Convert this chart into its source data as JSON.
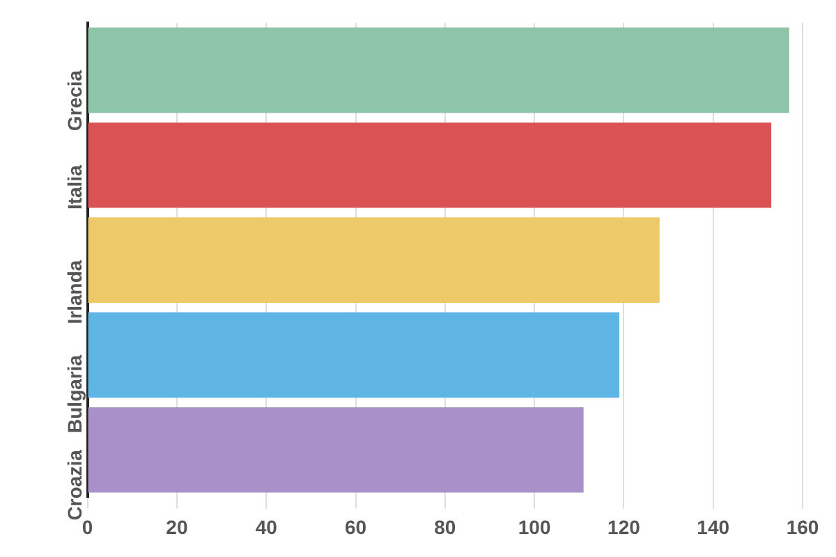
{
  "chart_data": {
    "type": "bar",
    "orientation": "horizontal",
    "categories": [
      "Grecia",
      "Italia",
      "Irlanda",
      "Bulgaria",
      "Croazia"
    ],
    "values": [
      157,
      153,
      128,
      119,
      111
    ],
    "colors": [
      "#8ec4a8",
      "#db5254",
      "#edc96a",
      "#5fb5e4",
      "#aa90c8"
    ],
    "xlim": [
      0,
      160
    ],
    "xticks": [
      0,
      20,
      40,
      60,
      80,
      100,
      120,
      140,
      160
    ],
    "grid": "x"
  }
}
